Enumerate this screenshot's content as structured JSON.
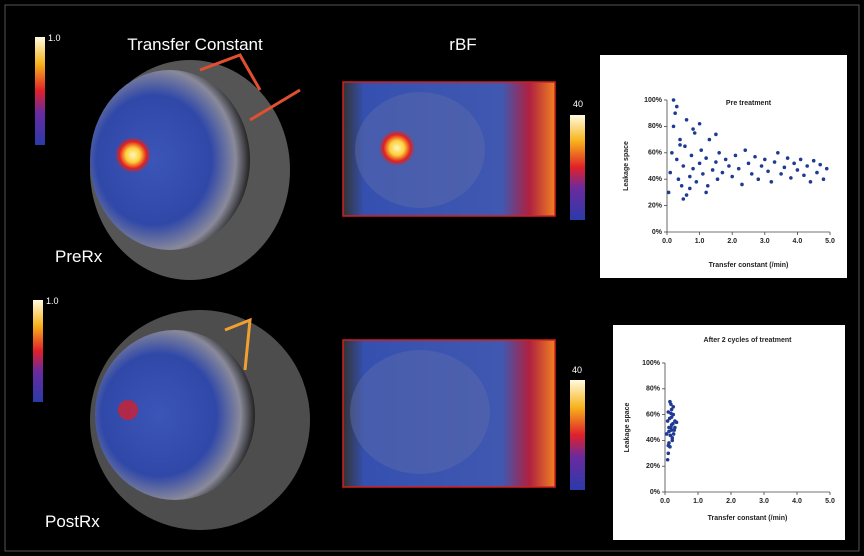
{
  "labels": {
    "transfer_constant": "Transfer Constant",
    "rbf": "rBF",
    "pre": "PreRx",
    "post": "PostRx"
  },
  "scale_labels": [
    "1.0",
    "40",
    "1.0",
    "40"
  ],
  "chart_data": [
    {
      "type": "scatter",
      "title": "Pre treatment",
      "x_label": "Transfer constant (/min)",
      "y_label": "Leakage space",
      "color": "#1f3a93",
      "xlim": [
        0,
        5
      ],
      "ylim": [
        0,
        100
      ],
      "xticks": [
        {
          "value": 0,
          "label": "0.0"
        },
        {
          "value": 1,
          "label": "1.0"
        },
        {
          "value": 2,
          "label": "2.0"
        },
        {
          "value": 3,
          "label": "3.0"
        },
        {
          "value": 4,
          "label": "4.0"
        },
        {
          "value": 5,
          "label": "5.0"
        }
      ],
      "yticks": [
        {
          "value": 0,
          "label": "0%"
        },
        {
          "value": 20,
          "label": "20%"
        },
        {
          "value": 40,
          "label": "40%"
        },
        {
          "value": 60,
          "label": "60%"
        },
        {
          "value": 80,
          "label": "80%"
        },
        {
          "value": 100,
          "label": "100%"
        }
      ],
      "x": [
        0.05,
        0.1,
        0.15,
        0.2,
        0.25,
        0.3,
        0.35,
        0.4,
        0.45,
        0.5,
        0.55,
        0.6,
        0.7,
        0.75,
        0.8,
        0.85,
        0.9,
        1.0,
        1.05,
        1.1,
        1.2,
        1.25,
        1.3,
        1.4,
        1.5,
        1.55,
        1.6,
        1.7,
        1.8,
        1.9,
        2.0,
        2.1,
        2.2,
        2.3,
        2.4,
        2.5,
        2.6,
        2.7,
        2.8,
        2.9,
        3.0,
        3.1,
        3.2,
        3.3,
        3.4,
        3.5,
        3.6,
        3.7,
        3.8,
        3.9,
        4.0,
        4.1,
        4.2,
        4.3,
        4.4,
        4.5,
        4.6,
        4.7,
        4.8,
        4.9,
        0.2,
        0.3,
        0.5,
        0.6,
        0.8,
        1.0,
        1.2,
        1.5,
        0.4,
        0.7
      ],
      "values": [
        30,
        45,
        60,
        80,
        90,
        55,
        40,
        70,
        35,
        50,
        65,
        85,
        42,
        58,
        48,
        75,
        38,
        52,
        62,
        44,
        56,
        35,
        70,
        47,
        53,
        40,
        60,
        45,
        55,
        50,
        42,
        58,
        48,
        36,
        62,
        52,
        44,
        57,
        40,
        50,
        55,
        46,
        38,
        53,
        60,
        44,
        49,
        56,
        41,
        52,
        47,
        55,
        43,
        50,
        38,
        54,
        45,
        51,
        40,
        48,
        100,
        95,
        25,
        28,
        78,
        82,
        30,
        74,
        66,
        33
      ]
    },
    {
      "type": "scatter",
      "title": "After 2 cycles of treatment",
      "x_label": "Transfer constant (/min)",
      "y_label": "Leakage space",
      "color": "#1f3a93",
      "xlim": [
        0,
        5
      ],
      "ylim": [
        0,
        100
      ],
      "xticks": [
        {
          "value": 0,
          "label": "0.0"
        },
        {
          "value": 1,
          "label": "1.0"
        },
        {
          "value": 2,
          "label": "2.0"
        },
        {
          "value": 3,
          "label": "3.0"
        },
        {
          "value": 4,
          "label": "4.0"
        },
        {
          "value": 5,
          "label": "5.0"
        }
      ],
      "yticks": [
        {
          "value": 0,
          "label": "0%"
        },
        {
          "value": 20,
          "label": "20%"
        },
        {
          "value": 40,
          "label": "40%"
        },
        {
          "value": 60,
          "label": "60%"
        },
        {
          "value": 80,
          "label": "80%"
        },
        {
          "value": 100,
          "label": "100%"
        }
      ],
      "x": [
        0.05,
        0.08,
        0.1,
        0.12,
        0.15,
        0.18,
        0.2,
        0.22,
        0.25,
        0.28,
        0.3,
        0.1,
        0.15,
        0.2,
        0.25,
        0.12,
        0.18,
        0.22,
        0.08,
        0.3,
        0.14,
        0.16,
        0.2,
        0.24,
        0.1,
        0.18,
        0.26,
        0.12,
        0.2,
        0.35
      ],
      "values": [
        45,
        55,
        62,
        38,
        70,
        50,
        58,
        42,
        66,
        48,
        55,
        30,
        35,
        52,
        60,
        47,
        68,
        40,
        25,
        50,
        57,
        44,
        64,
        53,
        36,
        61,
        45,
        50,
        48,
        54
      ]
    }
  ]
}
